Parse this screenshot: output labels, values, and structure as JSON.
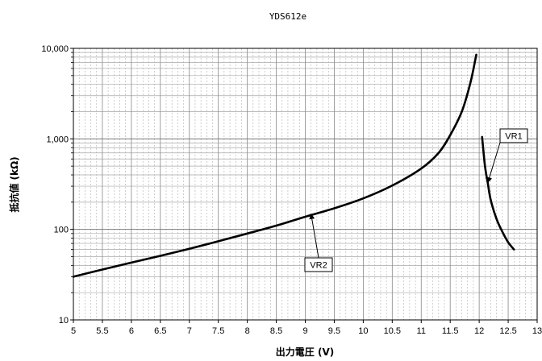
{
  "chart_data": {
    "type": "line",
    "title": "YDS612e",
    "xlabel": "出力電圧 (V)",
    "ylabel": "抵抗値 (kΩ)",
    "x_scale": "linear",
    "y_scale": "log",
    "xlim": [
      5,
      13
    ],
    "ylim": [
      10,
      10000
    ],
    "x_ticks": [
      "5",
      "5.5",
      "6",
      "6.5",
      "7",
      "7.5",
      "8",
      "8.5",
      "9",
      "9.5",
      "10",
      "10.5",
      "11",
      "11.5",
      "12",
      "12.5",
      "13"
    ],
    "y_ticks": [
      "10",
      "100",
      "1,000",
      "10,000"
    ],
    "grid": true,
    "series": [
      {
        "name": "VR2",
        "x": [
          5.0,
          5.5,
          6.0,
          6.5,
          7.0,
          7.5,
          8.0,
          8.5,
          9.0,
          9.5,
          10.0,
          10.5,
          11.0,
          11.3,
          11.5,
          11.7,
          11.85,
          11.95
        ],
        "y": [
          30,
          36,
          43,
          51,
          61,
          74,
          90,
          110,
          138,
          171,
          220,
          305,
          470,
          700,
          1100,
          2000,
          4200,
          8500
        ]
      },
      {
        "name": "VR1",
        "x": [
          12.05,
          12.1,
          12.15,
          12.2,
          12.3,
          12.4,
          12.5,
          12.6
        ],
        "y": [
          1050,
          500,
          320,
          210,
          130,
          94,
          72,
          60
        ]
      }
    ],
    "annotations": [
      {
        "label": "VR1",
        "point": [
          12.15,
          330
        ]
      },
      {
        "label": "VR2",
        "point": [
          9.1,
          148
        ]
      }
    ]
  }
}
